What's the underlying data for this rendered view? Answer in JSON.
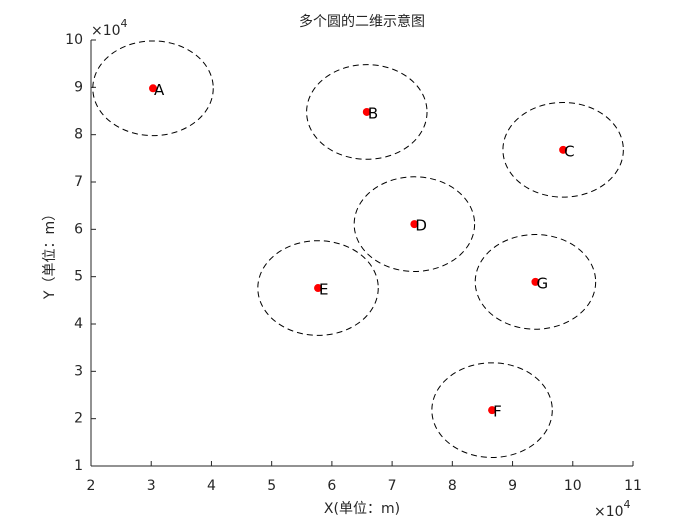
{
  "chart_data": {
    "type": "scatter",
    "title": "多个圆的二维示意图",
    "xlabel": "X(单位：m)",
    "ylabel": "Y（单位：m）",
    "x_scale_label": {
      "base": "×10",
      "exponent": "4"
    },
    "y_scale_label": {
      "base": "×10",
      "exponent": "4"
    },
    "labels": [
      "A",
      "B",
      "C",
      "D",
      "E",
      "F",
      "G"
    ],
    "x": [
      3.03,
      6.58,
      9.84,
      7.37,
      5.77,
      8.66,
      9.38
    ],
    "y": [
      8.98,
      8.48,
      7.68,
      6.11,
      4.76,
      2.18,
      4.89
    ],
    "radius": 1,
    "color": "#ff0000",
    "circle_color": "#000000",
    "xlim": [
      2,
      11
    ],
    "ylim": [
      1,
      10
    ],
    "xticks": [
      2,
      3,
      4,
      5,
      6,
      7,
      8,
      9,
      10,
      11
    ],
    "yticks": [
      1,
      2,
      3,
      4,
      5,
      6,
      7,
      8,
      9,
      10
    ]
  }
}
